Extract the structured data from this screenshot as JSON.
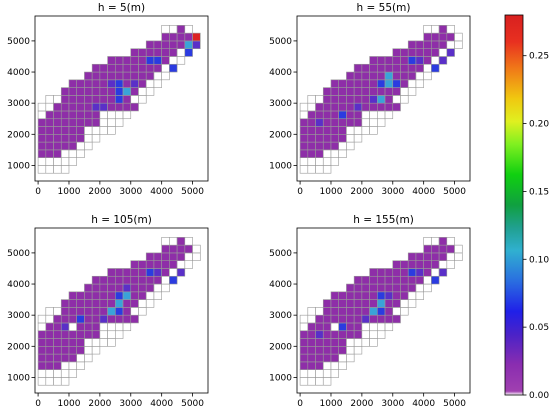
{
  "chart_data": {
    "type": "heatmap",
    "panels": [
      {
        "title": "h = 5(m)",
        "xlim": [
          -100,
          5500
        ],
        "ylim": [
          500,
          5800
        ],
        "xticks": [
          0,
          1000,
          2000,
          3000,
          4000,
          5000
        ],
        "yticks": [
          1000,
          2000,
          3000,
          4000,
          5000
        ],
        "grid_origin": [
          0,
          750
        ],
        "cell_size": 250,
        "rows": [
          "..................................",
          "..................................",
          "..................................",
          ".........eeeeeee..................",
          "........eaaaaaaaaeeee............",
          "......eaaaaaabaaaaaaaaeeeeeeeee...",
          "......aaaaabbbaaaaaaaaaaaaaaaaa...",
          "......aaabccaaaaaaaaaaaaaaeeeeee..",
          "...aaaaaaabaaaaaeeeeeeeeeeeeeeeeee",
          "..aaaaaabaaabbaaaaaaaeeeeeeeeeeeee",
          "aaaaaaaabaaaaaaaaaaaaaaaaaeeeeeeee",
          "aaaaaaaaaaaaaaaaaeeeeeeeeeeeeeee..",
          "aaaaaaaaaaaaaaaeeeeeeeeeeeeeeee...",
          "..................................",
          "..................................",
          ".................................."
        ]
      },
      {
        "title": "h = 55(m)",
        "xlim": [
          -100,
          5500
        ],
        "ylim": [
          500,
          5800
        ],
        "xticks": [
          0,
          1000,
          2000,
          3000,
          4000,
          5000
        ],
        "yticks": [
          1000,
          2000,
          3000,
          4000,
          5000
        ]
      },
      {
        "title": "h = 105(m)",
        "xlim": [
          -100,
          5500
        ],
        "ylim": [
          500,
          5800
        ],
        "xticks": [
          0,
          1000,
          2000,
          3000,
          4000,
          5000
        ],
        "yticks": [
          1000,
          2000,
          3000,
          4000,
          5000
        ]
      },
      {
        "title": "h = 155(m)",
        "xlim": [
          -100,
          5500
        ],
        "ylim": [
          500,
          5800
        ],
        "xticks": [
          0,
          1000,
          2000,
          3000,
          4000,
          5000
        ],
        "yticks": [
          1000,
          2000,
          3000,
          4000,
          5000
        ]
      }
    ],
    "grid": {
      "origin": [
        0,
        750
      ],
      "cell_size": 250,
      "cols": 22,
      "rows_count": 19,
      "cells": [
        "....................................................",
        "......eeee...........................................",
        "......ppee...........................................",
        "......pppe...........................................",
        "......pppppe.........................................",
        "eeeepppppppe.........................................",
        "eeppppppppppp........................................",
        "eppppppppppppee......................................",
        "eppppppppppppppe.....................................",
        "eeepppppppppppppp....................................",
        "..eepppppppppppppe...................................",
        "...eepppppppppppppe..................................",
        "....eeppppppppppppe..................................",
        "......epppppppppppe..................................",
        "........eeppppppppe..................................",
        ".........eeeeppppee..................................",
        "............eeeeeee..................................",
        "....................................................",
        "...................................................."
      ]
    },
    "cells_by_panel": [
      [
        [
          0,
          3,
          "e"
        ],
        [
          1,
          3,
          "e"
        ],
        [
          2,
          3,
          "e"
        ],
        [
          3,
          3,
          "e"
        ],
        [
          0,
          4,
          "e"
        ],
        [
          1,
          4,
          "e"
        ],
        [
          2,
          4,
          "e"
        ],
        [
          3,
          4,
          "e"
        ],
        [
          0,
          5,
          "p"
        ],
        [
          1,
          5,
          "p"
        ],
        [
          2,
          5,
          "p"
        ],
        [
          3,
          5,
          "e"
        ],
        [
          0,
          6,
          "p"
        ],
        [
          1,
          6,
          "p"
        ],
        [
          2,
          6,
          "p"
        ],
        [
          3,
          6,
          "e"
        ],
        [
          0,
          7,
          "p"
        ],
        [
          1,
          7,
          "p"
        ],
        [
          2,
          7,
          "p"
        ],
        [
          3,
          7,
          "p"
        ],
        [
          4,
          7,
          "e"
        ],
        [
          0,
          8,
          "e"
        ],
        [
          1,
          8,
          "p"
        ],
        [
          2,
          8,
          "p"
        ],
        [
          3,
          8,
          "p"
        ],
        [
          4,
          8,
          "p"
        ],
        [
          5,
          8,
          "p"
        ],
        [
          6,
          8,
          "p"
        ],
        [
          7,
          8,
          "p"
        ],
        [
          8,
          8,
          "p"
        ],
        [
          9,
          8,
          "e"
        ],
        [
          10,
          8,
          "e"
        ],
        [
          0,
          9,
          "e"
        ],
        [
          1,
          9,
          "p"
        ],
        [
          2,
          9,
          "p"
        ],
        [
          3,
          9,
          "p"
        ],
        [
          4,
          9,
          "p"
        ],
        [
          5,
          9,
          "p"
        ],
        [
          6,
          9,
          "p"
        ],
        [
          7,
          9,
          "p"
        ],
        [
          8,
          9,
          "p"
        ],
        [
          9,
          9,
          "p"
        ],
        [
          10,
          9,
          "e"
        ],
        [
          11,
          9,
          "e"
        ],
        [
          0,
          10,
          "e"
        ],
        [
          1,
          10,
          "e"
        ],
        [
          2,
          10,
          "p"
        ],
        [
          3,
          10,
          "p"
        ],
        [
          4,
          10,
          "p"
        ],
        [
          5,
          10,
          "p"
        ],
        [
          6,
          10,
          "p"
        ],
        [
          7,
          10,
          "v"
        ],
        [
          8,
          10,
          "p"
        ],
        [
          9,
          10,
          "p"
        ],
        [
          10,
          10,
          "e"
        ],
        [
          11,
          10,
          "e"
        ],
        [
          0,
          11,
          "e"
        ],
        [
          1,
          11,
          "e"
        ],
        [
          2,
          11,
          "e"
        ],
        [
          3,
          11,
          "p"
        ],
        [
          4,
          11,
          "p"
        ],
        [
          5,
          11,
          "p"
        ],
        [
          6,
          11,
          "p"
        ],
        [
          7,
          11,
          "p"
        ],
        [
          8,
          11,
          "p"
        ],
        [
          9,
          11,
          "p"
        ],
        [
          10,
          11,
          "e"
        ],
        [
          11,
          11,
          "e"
        ],
        [
          1,
          12,
          "e"
        ],
        [
          2,
          12,
          "e"
        ],
        [
          3,
          12,
          "e"
        ],
        [
          4,
          12,
          "e"
        ],
        [
          5,
          12,
          "e"
        ],
        [
          6,
          12,
          "e"
        ],
        [
          7,
          12,
          "e"
        ],
        [
          8,
          12,
          "p"
        ],
        [
          9,
          12,
          "v"
        ],
        [
          10,
          12,
          "c"
        ],
        [
          11,
          12,
          "p"
        ],
        [
          12,
          12,
          "e"
        ],
        [
          7,
          13,
          "e"
        ],
        [
          8,
          13,
          "e"
        ],
        [
          9,
          13,
          "p"
        ],
        [
          10,
          13,
          "p"
        ],
        [
          11,
          13,
          "b"
        ],
        [
          12,
          13,
          "p"
        ],
        [
          13,
          13,
          "p"
        ],
        [
          14,
          13,
          "e"
        ],
        [
          15,
          13,
          "e"
        ],
        [
          8,
          14,
          "e"
        ],
        [
          9,
          14,
          "e"
        ],
        [
          10,
          14,
          "e"
        ],
        [
          11,
          14,
          "p"
        ],
        [
          12,
          14,
          "p"
        ],
        [
          13,
          14,
          "p"
        ],
        [
          14,
          14,
          "p"
        ],
        [
          15,
          14,
          "p"
        ],
        [
          16,
          14,
          "e"
        ],
        [
          17,
          14,
          "e"
        ],
        [
          9,
          15,
          "e"
        ],
        [
          10,
          15,
          "e"
        ],
        [
          11,
          15,
          "e"
        ],
        [
          12,
          15,
          "e"
        ],
        [
          13,
          15,
          "p"
        ],
        [
          14,
          15,
          "p"
        ],
        [
          15,
          15,
          "p"
        ],
        [
          16,
          15,
          "p"
        ],
        [
          17,
          15,
          "p"
        ],
        [
          18,
          15,
          "e"
        ],
        [
          19,
          15,
          "e"
        ],
        [
          12,
          16,
          "e"
        ],
        [
          13,
          16,
          "e"
        ],
        [
          14,
          16,
          "e"
        ],
        [
          15,
          16,
          "e"
        ],
        [
          16,
          16,
          "p"
        ],
        [
          17,
          16,
          "p"
        ],
        [
          18,
          16,
          "p"
        ],
        [
          19,
          16,
          "v"
        ],
        [
          20,
          16,
          "e"
        ],
        [
          15,
          17,
          "e"
        ],
        [
          16,
          17,
          "e"
        ],
        [
          17,
          17,
          "e"
        ],
        [
          18,
          17,
          "e"
        ],
        [
          19,
          17,
          "p"
        ],
        [
          20,
          17,
          "e"
        ],
        [
          16,
          18,
          "e"
        ],
        [
          17,
          18,
          "e"
        ],
        [
          18,
          18,
          "e"
        ],
        [
          19,
          18,
          "e"
        ],
        [
          20,
          18,
          "e"
        ]
      ]
    ],
    "colorbar": {
      "colormap": "nipy_spectral-like",
      "range": [
        0.0,
        0.28
      ],
      "ticks": [
        0.0,
        0.05,
        0.1,
        0.15,
        0.2,
        0.25
      ],
      "tick_labels": [
        "0.00",
        "0.05",
        "0.10",
        "0.15",
        "0.20",
        "0.25"
      ]
    }
  },
  "colors": {
    "empty_cell": "#ffffff",
    "cell_edge": "#999999",
    "purple": "#8e2ea8",
    "violet": "#5a2fc8",
    "blue": "#2b3be0",
    "cyan": "#3aa3d8",
    "red": "#dd2222"
  }
}
